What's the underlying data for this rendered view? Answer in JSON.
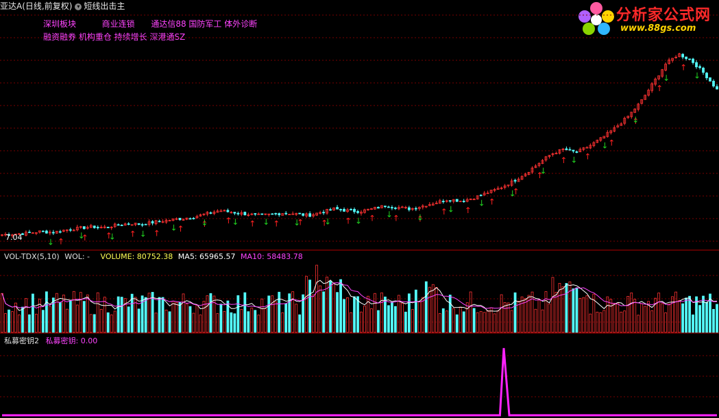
{
  "header": {
    "stock_title": "亚达A(日线,前复权)",
    "formula_name": "短线出击主"
  },
  "tags": {
    "row1": [
      "深圳板块",
      "商业连锁",
      "通达信88 国防军工 体外诊断"
    ],
    "row2": [
      "融资融券 机构重仓 持续增长 深港通SZ"
    ]
  },
  "logo": {
    "brand": "分析家公式网",
    "url": "www.88gs.com"
  },
  "main_panel": {
    "low_price_label": "7.04"
  },
  "volume_panel": {
    "indicator": "VOL-TDX(5,10)",
    "vol_label": "WOL: -",
    "volume_label": "VOLUME: 80752.38",
    "ma5_label": "MA5: 65965.57",
    "ma10_label": "MA10: 58483.78"
  },
  "bottom_panel": {
    "indicator": "私募密钥2",
    "value_label": "私募密钥: 0.00"
  },
  "colors": {
    "up": "#ff3232",
    "down": "#54fcfc",
    "ma5": "#ffffff",
    "ma10": "#ff44ff",
    "signal": "#ff22ff",
    "buy_arrow": "#ff2020",
    "sell_arrow": "#20d020",
    "grid": "#7a0000"
  },
  "chart_data": {
    "type": "candlestick",
    "series_close_shape": [
      7.0,
      7.05,
      7.1,
      7.2,
      7.15,
      7.3,
      7.4,
      7.5,
      7.45,
      7.6,
      7.7,
      7.65,
      7.8,
      7.9,
      8.0,
      8.1,
      8.3,
      8.5,
      8.4,
      8.3,
      8.2,
      8.25,
      8.35,
      8.3,
      8.2,
      8.4,
      8.6,
      8.5,
      8.45,
      8.6,
      8.8,
      8.7,
      8.6,
      8.8,
      9.0,
      9.2,
      9.1,
      9.3,
      9.6,
      9.9,
      10.3,
      10.8,
      11.4,
      12.0,
      12.3,
      12.1,
      12.5,
      13.0,
      13.6,
      14.3,
      15.2,
      16.4,
      17.6,
      18.2,
      17.8,
      17.0,
      16.0
    ],
    "signal_values": [
      0,
      0,
      0,
      0,
      0,
      0,
      0,
      0,
      0,
      0,
      0,
      0,
      0,
      0,
      0,
      0,
      0,
      0,
      0,
      0,
      0,
      0,
      0,
      0,
      0,
      0,
      0,
      0,
      0,
      0,
      0,
      0,
      0,
      0,
      0,
      0,
      0,
      0,
      0,
      0,
      0,
      0,
      0,
      0,
      0,
      0,
      0,
      0,
      0,
      0,
      1,
      0,
      0,
      0,
      0,
      0,
      0
    ]
  }
}
